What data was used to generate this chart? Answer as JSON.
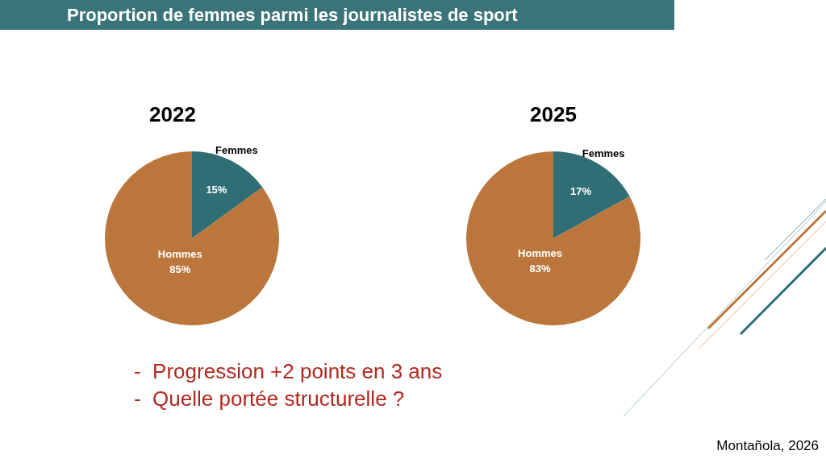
{
  "chart_data": [
    {
      "type": "other",
      "title": "Proportion de femmes parmi les journalistes de sport",
      "annotations": [
        "-  Progression +2 points en 3 ans",
        "-  Quelle portée structurelle ?",
        "Montañola, 2026"
      ]
    },
    {
      "type": "pie",
      "title": "2022",
      "categories": [
        "Femmes",
        "Hommes"
      ],
      "values": [
        15,
        85
      ],
      "colors": [
        "#2f6e75",
        "#bb763b"
      ],
      "value_labels": [
        "15%",
        "85%"
      ]
    },
    {
      "type": "pie",
      "title": "2025",
      "categories": [
        "Femmes",
        "Hommes"
      ],
      "values": [
        17,
        83
      ],
      "colors": [
        "#2f6e75",
        "#bb763b"
      ],
      "value_labels": [
        "17%",
        "83%"
      ]
    }
  ]
}
